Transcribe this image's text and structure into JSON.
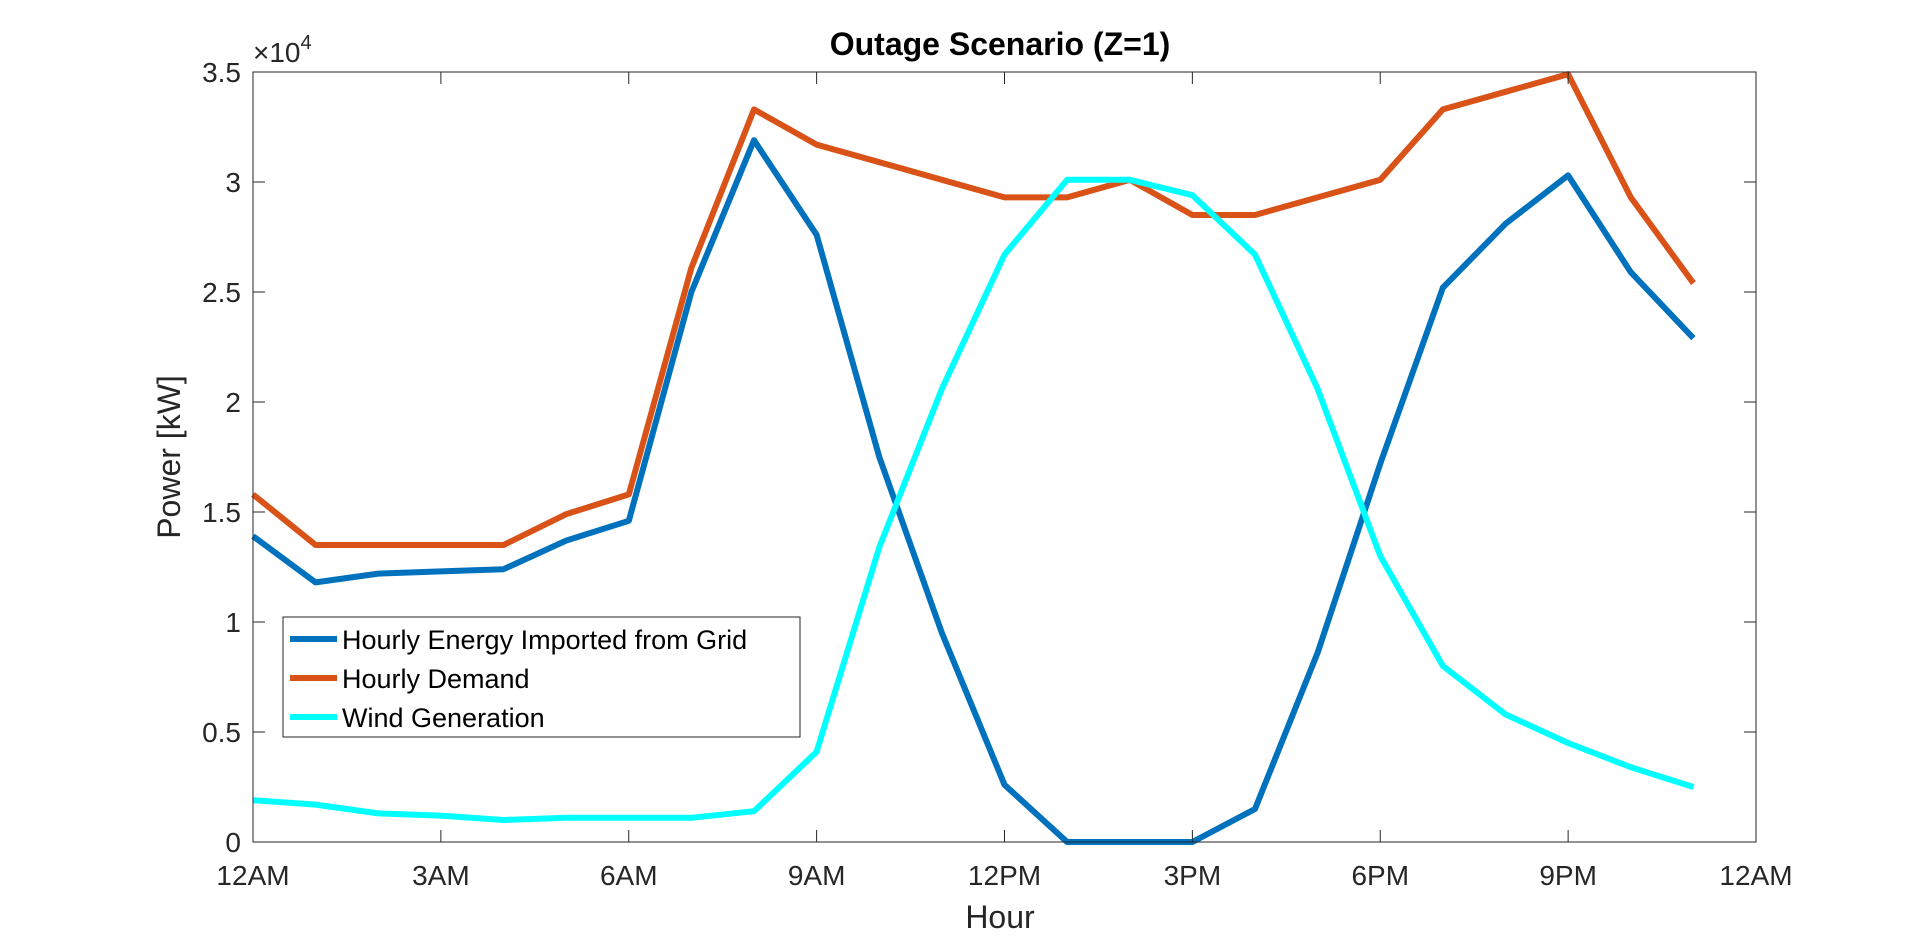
{
  "chart_data": {
    "type": "line",
    "title": "Outage Scenario (Z=1)",
    "xlabel": "Hour",
    "ylabel": "Power [kW]",
    "y_exponent": {
      "base": "×10",
      "power": "4"
    },
    "xlim": [
      0,
      24
    ],
    "ylim": [
      0,
      3.5
    ],
    "x_ticks": [
      0,
      3,
      6,
      9,
      12,
      15,
      18,
      21,
      24
    ],
    "x_tick_labels": [
      "12AM",
      "3AM",
      "6AM",
      "9AM",
      "12PM",
      "3PM",
      "6PM",
      "9PM",
      "12AM"
    ],
    "y_ticks": [
      0,
      0.5,
      1,
      1.5,
      2,
      2.5,
      3,
      3.5
    ],
    "y_tick_labels": [
      "0",
      "0.5",
      "1",
      "1.5",
      "2",
      "2.5",
      "3",
      "3.5"
    ],
    "grid": false,
    "legend_position": "lower-left",
    "x": [
      0,
      1,
      2,
      3,
      4,
      5,
      6,
      7,
      8,
      9,
      10,
      11,
      12,
      13,
      14,
      15,
      16,
      17,
      18,
      19,
      20,
      21,
      22,
      23
    ],
    "series": [
      {
        "name": "Hourly Energy Imported from Grid",
        "color": "#0072BD",
        "values": [
          1.39,
          1.18,
          1.22,
          1.23,
          1.24,
          1.37,
          1.46,
          2.5,
          3.19,
          2.76,
          1.75,
          0.95,
          0.26,
          0.0,
          0.0,
          0.0,
          0.15,
          0.86,
          1.72,
          2.52,
          2.81,
          3.03,
          2.59,
          2.29
        ]
      },
      {
        "name": "Hourly Demand",
        "color": "#D95319",
        "values": [
          1.58,
          1.35,
          1.35,
          1.35,
          1.35,
          1.49,
          1.58,
          2.61,
          3.33,
          3.17,
          3.09,
          3.01,
          2.93,
          2.93,
          3.01,
          2.85,
          2.85,
          2.93,
          3.01,
          3.33,
          3.41,
          3.49,
          2.93,
          2.54
        ]
      },
      {
        "name": "Wind Generation",
        "color": "#00FFFF",
        "values": [
          0.19,
          0.17,
          0.13,
          0.12,
          0.1,
          0.11,
          0.11,
          0.11,
          0.14,
          0.41,
          1.34,
          2.06,
          2.67,
          3.01,
          3.01,
          2.94,
          2.67,
          2.06,
          1.3,
          0.8,
          0.58,
          0.45,
          0.34,
          0.25
        ]
      }
    ]
  }
}
